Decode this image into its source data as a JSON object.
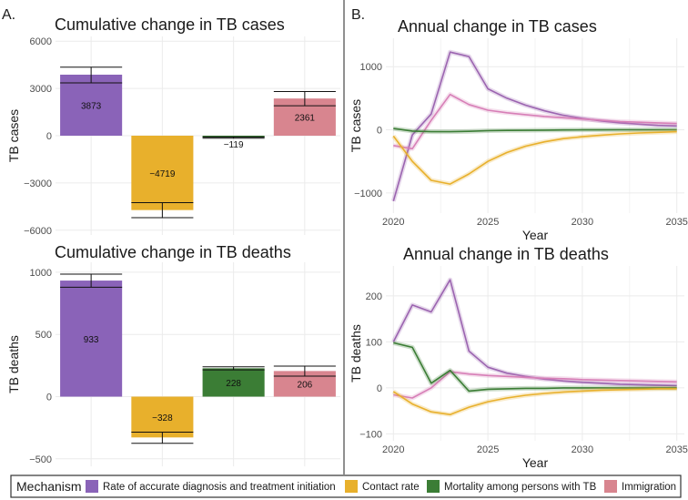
{
  "panels": {
    "a": "A.",
    "b": "B."
  },
  "colors": {
    "purple": "#8a63b8",
    "yellow": "#e8b02c",
    "green": "#3b7d35",
    "pink": "#d8858f",
    "pink_line": "#d77fb7"
  },
  "legend": {
    "title": "Mechanism",
    "items": [
      {
        "label": "Rate of accurate diagnosis and treatment initiation",
        "color": "#8a63b8"
      },
      {
        "label": "Contact rate",
        "color": "#e8b02c"
      },
      {
        "label": "Mortality among persons with TB",
        "color": "#3b7d35"
      },
      {
        "label": "Immigration",
        "color": "#d8858f"
      }
    ]
  },
  "chart_data": [
    {
      "id": "cases_bar",
      "type": "bar",
      "title": "Cumulative change in TB cases",
      "ylabel": "TB cases",
      "xlabel": "",
      "ylim": [
        -6300,
        6300
      ],
      "yticks": [
        6000,
        3000,
        0,
        -3000,
        -6000
      ],
      "categories": [
        "Rate of accurate diagnosis and treatment initiation",
        "Contact rate",
        "Mortality among persons with TB",
        "Immigration"
      ],
      "values": [
        3873,
        -4719,
        -119,
        2361
      ],
      "labels": [
        "3873",
        "−4719",
        "−119",
        "2361"
      ],
      "err_low": [
        3350,
        -5200,
        -160,
        1900
      ],
      "err_high": [
        4350,
        -4250,
        -80,
        2800
      ],
      "colors": [
        "#8a63b8",
        "#e8b02c",
        "#3b7d35",
        "#d8858f"
      ]
    },
    {
      "id": "deaths_bar",
      "type": "bar",
      "title": "Cumulative change in TB deaths",
      "ylabel": "TB deaths",
      "xlabel": "",
      "ylim": [
        -560,
        1080
      ],
      "yticks": [
        1000,
        500,
        0,
        -500
      ],
      "categories": [
        "Rate of accurate diagnosis and treatment initiation",
        "Contact rate",
        "Mortality among persons with TB",
        "Immigration"
      ],
      "values": [
        933,
        -328,
        228,
        206
      ],
      "labels": [
        "933",
        "−328",
        "228",
        "206"
      ],
      "err_low": [
        880,
        -375,
        215,
        165
      ],
      "err_high": [
        985,
        -285,
        240,
        245
      ],
      "colors": [
        "#8a63b8",
        "#e8b02c",
        "#3b7d35",
        "#d8858f"
      ]
    },
    {
      "id": "cases_line",
      "type": "line",
      "title": "Annual change in TB cases",
      "ylabel": "TB cases",
      "xlabel": "Year",
      "xlim": [
        2019.6,
        2035.4
      ],
      "ylim": [
        -1320,
        1450
      ],
      "xticks": [
        2020,
        2025,
        2030,
        2035
      ],
      "yticks": [
        1000,
        0,
        -1000
      ],
      "x": [
        2020,
        2021,
        2022,
        2023,
        2024,
        2025,
        2026,
        2027,
        2028,
        2029,
        2030,
        2031,
        2032,
        2033,
        2034,
        2035
      ],
      "series": [
        {
          "name": "Rate of accurate diagnosis and treatment initiation",
          "color": "#9b64b0",
          "values": [
            -1130,
            -80,
            250,
            1230,
            1160,
            650,
            500,
            390,
            300,
            230,
            180,
            140,
            110,
            90,
            70,
            60
          ]
        },
        {
          "name": "Immigration",
          "color": "#d77fb7",
          "values": [
            -250,
            -300,
            150,
            560,
            400,
            310,
            270,
            240,
            210,
            190,
            170,
            150,
            130,
            120,
            110,
            100
          ]
        },
        {
          "name": "Mortality among persons with TB",
          "color": "#3b7d35",
          "values": [
            20,
            -20,
            -30,
            -30,
            -25,
            -15,
            -10,
            -8,
            -5,
            -3,
            -2,
            -1,
            0,
            0,
            0,
            0
          ]
        },
        {
          "name": "Contact rate",
          "color": "#e8b02c",
          "values": [
            -100,
            -500,
            -800,
            -860,
            -700,
            -500,
            -360,
            -260,
            -190,
            -140,
            -110,
            -85,
            -65,
            -50,
            -40,
            -30
          ]
        }
      ]
    },
    {
      "id": "deaths_line",
      "type": "line",
      "title": "Annual change in TB deaths",
      "ylabel": "TB deaths",
      "xlabel": "Year",
      "xlim": [
        2019.6,
        2035.4
      ],
      "ylim": [
        -115,
        265
      ],
      "xticks": [
        2020,
        2025,
        2030,
        2035
      ],
      "yticks": [
        200,
        100,
        0,
        -100
      ],
      "x": [
        2020,
        2021,
        2022,
        2023,
        2024,
        2025,
        2026,
        2027,
        2028,
        2029,
        2030,
        2031,
        2032,
        2033,
        2034,
        2035
      ],
      "series": [
        {
          "name": "Rate of accurate diagnosis and treatment initiation",
          "color": "#9b64b0",
          "values": [
            100,
            180,
            165,
            235,
            80,
            45,
            32,
            25,
            19,
            15,
            12,
            10,
            8,
            7,
            6,
            5
          ]
        },
        {
          "name": "Immigration",
          "color": "#d77fb7",
          "values": [
            -15,
            -22,
            0,
            35,
            30,
            27,
            25,
            23,
            21,
            20,
            18,
            17,
            16,
            15,
            14,
            13
          ]
        },
        {
          "name": "Mortality among persons with TB",
          "color": "#3b7d35",
          "values": [
            98,
            88,
            10,
            38,
            -7,
            -3,
            -2,
            -1,
            -1,
            0,
            0,
            0,
            0,
            0,
            0,
            0
          ]
        },
        {
          "name": "Contact rate",
          "color": "#e8b02c",
          "values": [
            -8,
            -35,
            -52,
            -58,
            -42,
            -30,
            -22,
            -16,
            -12,
            -9,
            -7,
            -5,
            -4,
            -3,
            -2,
            -2
          ]
        }
      ]
    }
  ]
}
